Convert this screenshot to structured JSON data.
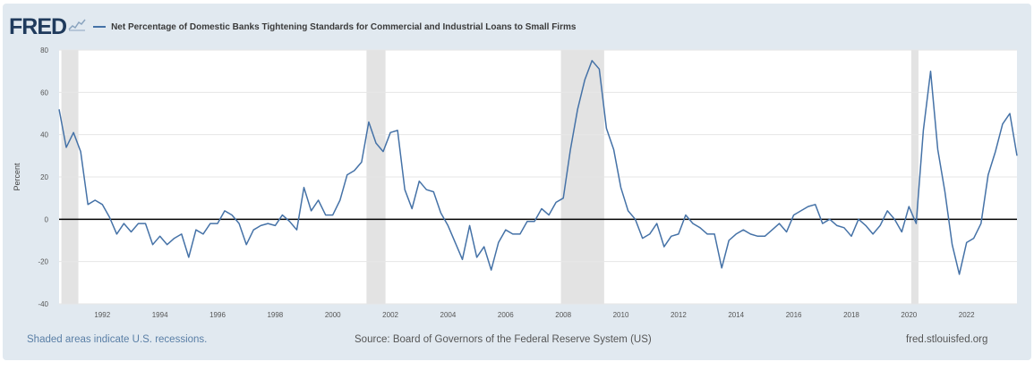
{
  "header": {
    "logo_text": "FRED",
    "logo_icon": "chart-sparkline-icon"
  },
  "colors": {
    "series": "#4572a7",
    "plot_bg": "#ffffff",
    "panel_bg": "#e1e9f0",
    "recession": "#e3e3e3",
    "zero_line": "#000000"
  },
  "footer": {
    "note": "Shaded areas indicate U.S. recessions.",
    "source": "Source: Board of Governors of the Federal Reserve System (US)",
    "site": "fred.stlouisfed.org"
  },
  "chart_data": {
    "type": "line",
    "title": "",
    "xlabel": "",
    "ylabel": "Percent",
    "xlim": [
      1990.5,
      2023.75
    ],
    "ylim": [
      -40,
      80
    ],
    "yticks": [
      -40,
      -20,
      0,
      20,
      40,
      60,
      80
    ],
    "xticks": [
      "1992",
      "1994",
      "1996",
      "1998",
      "2000",
      "2002",
      "2004",
      "2006",
      "2008",
      "2010",
      "2012",
      "2014",
      "2016",
      "2018",
      "2020",
      "2022"
    ],
    "grid": true,
    "zero_line": true,
    "recessions": [
      [
        1990.58,
        1991.17
      ],
      [
        2001.17,
        2001.83
      ],
      [
        2007.92,
        2009.42
      ],
      [
        2020.08,
        2020.33
      ]
    ],
    "series": [
      {
        "name": "Net Percentage of Domestic Banks Tightening Standards for Commercial and Industrial Loans to Small Firms",
        "points": [
          [
            1990.5,
            52
          ],
          [
            1990.75,
            34
          ],
          [
            1991.0,
            41
          ],
          [
            1991.25,
            32
          ],
          [
            1991.5,
            7
          ],
          [
            1991.75,
            9
          ],
          [
            1992.0,
            7
          ],
          [
            1992.25,
            1
          ],
          [
            1992.5,
            -7
          ],
          [
            1992.75,
            -2
          ],
          [
            1993.0,
            -6
          ],
          [
            1993.25,
            -2
          ],
          [
            1993.5,
            -2
          ],
          [
            1993.75,
            -12
          ],
          [
            1994.0,
            -8
          ],
          [
            1994.25,
            -12
          ],
          [
            1994.5,
            -9
          ],
          [
            1994.75,
            -7
          ],
          [
            1995.0,
            -18
          ],
          [
            1995.25,
            -5
          ],
          [
            1995.5,
            -7
          ],
          [
            1995.75,
            -2
          ],
          [
            1996.0,
            -2
          ],
          [
            1996.25,
            4
          ],
          [
            1996.5,
            2
          ],
          [
            1996.75,
            -2
          ],
          [
            1997.0,
            -12
          ],
          [
            1997.25,
            -5
          ],
          [
            1997.5,
            -3
          ],
          [
            1997.75,
            -2
          ],
          [
            1998.0,
            -3
          ],
          [
            1998.25,
            2
          ],
          [
            1998.5,
            -1
          ],
          [
            1998.75,
            -5
          ],
          [
            1999.0,
            15
          ],
          [
            1999.25,
            4
          ],
          [
            1999.5,
            9
          ],
          [
            1999.75,
            2
          ],
          [
            2000.0,
            2
          ],
          [
            2000.25,
            9
          ],
          [
            2000.5,
            21
          ],
          [
            2000.75,
            23
          ],
          [
            2001.0,
            27
          ],
          [
            2001.25,
            46
          ],
          [
            2001.5,
            36
          ],
          [
            2001.75,
            32
          ],
          [
            2002.0,
            41
          ],
          [
            2002.25,
            42
          ],
          [
            2002.5,
            14
          ],
          [
            2002.75,
            5
          ],
          [
            2003.0,
            18
          ],
          [
            2003.25,
            14
          ],
          [
            2003.5,
            13
          ],
          [
            2003.75,
            3
          ],
          [
            2004.0,
            -3
          ],
          [
            2004.25,
            -11
          ],
          [
            2004.5,
            -19
          ],
          [
            2004.75,
            -3
          ],
          [
            2005.0,
            -18
          ],
          [
            2005.25,
            -13
          ],
          [
            2005.5,
            -24
          ],
          [
            2005.75,
            -11
          ],
          [
            2006.0,
            -5
          ],
          [
            2006.25,
            -7
          ],
          [
            2006.5,
            -7
          ],
          [
            2006.75,
            -1
          ],
          [
            2007.0,
            -1
          ],
          [
            2007.25,
            5
          ],
          [
            2007.5,
            2
          ],
          [
            2007.75,
            8
          ],
          [
            2008.0,
            10
          ],
          [
            2008.25,
            33
          ],
          [
            2008.5,
            52
          ],
          [
            2008.75,
            66
          ],
          [
            2009.0,
            75
          ],
          [
            2009.25,
            71
          ],
          [
            2009.5,
            43
          ],
          [
            2009.75,
            33
          ],
          [
            2010.0,
            15
          ],
          [
            2010.25,
            4
          ],
          [
            2010.5,
            0
          ],
          [
            2010.75,
            -9
          ],
          [
            2011.0,
            -7
          ],
          [
            2011.25,
            -2
          ],
          [
            2011.5,
            -13
          ],
          [
            2011.75,
            -8
          ],
          [
            2012.0,
            -7
          ],
          [
            2012.25,
            2
          ],
          [
            2012.5,
            -2
          ],
          [
            2012.75,
            -4
          ],
          [
            2013.0,
            -7
          ],
          [
            2013.25,
            -7
          ],
          [
            2013.5,
            -23
          ],
          [
            2013.75,
            -10
          ],
          [
            2014.0,
            -7
          ],
          [
            2014.25,
            -5
          ],
          [
            2014.5,
            -7
          ],
          [
            2014.75,
            -8
          ],
          [
            2015.0,
            -8
          ],
          [
            2015.25,
            -5
          ],
          [
            2015.5,
            -2
          ],
          [
            2015.75,
            -6
          ],
          [
            2016.0,
            2
          ],
          [
            2016.25,
            4
          ],
          [
            2016.5,
            6
          ],
          [
            2016.75,
            7
          ],
          [
            2017.0,
            -2
          ],
          [
            2017.25,
            0
          ],
          [
            2017.5,
            -3
          ],
          [
            2017.75,
            -4
          ],
          [
            2018.0,
            -8
          ],
          [
            2018.25,
            0
          ],
          [
            2018.5,
            -3
          ],
          [
            2018.75,
            -7
          ],
          [
            2019.0,
            -3
          ],
          [
            2019.25,
            4
          ],
          [
            2019.5,
            0
          ],
          [
            2019.75,
            -6
          ],
          [
            2020.0,
            6
          ],
          [
            2020.25,
            -2
          ],
          [
            2020.5,
            42
          ],
          [
            2020.75,
            70
          ],
          [
            2021.0,
            33
          ],
          [
            2021.25,
            13
          ],
          [
            2021.5,
            -12
          ],
          [
            2021.75,
            -26
          ],
          [
            2022.0,
            -11
          ],
          [
            2022.25,
            -9
          ],
          [
            2022.5,
            -2
          ],
          [
            2022.75,
            21
          ],
          [
            2023.0,
            32
          ],
          [
            2023.25,
            45
          ],
          [
            2023.5,
            50
          ],
          [
            2023.75,
            30
          ]
        ]
      }
    ]
  }
}
